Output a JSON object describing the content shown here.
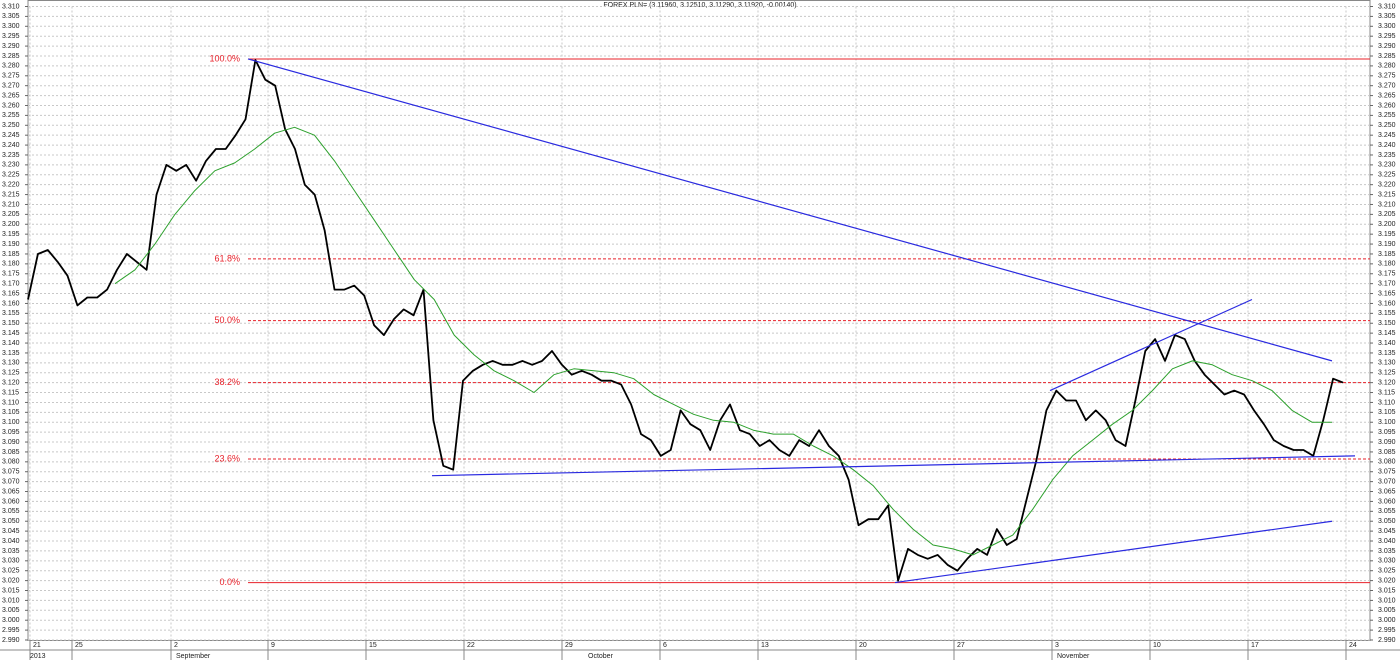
{
  "chart_data": {
    "type": "line",
    "title": "FOREX PLN= (3.11960, 3.12510, 3.11290, 3.11920, -0.00140)",
    "ylim": [
      2.99,
      3.31
    ],
    "yticks": [
      {
        "value": 3.31,
        "label": "3.310"
      },
      3.305,
      {
        "value": 3.3,
        "label": "3.300"
      },
      3.295,
      {
        "value": 3.29,
        "label": "3.290"
      },
      3.285,
      {
        "value": 3.28,
        "label": "3.280"
      },
      3.275,
      {
        "value": 3.27,
        "label": "3.270"
      },
      3.265,
      {
        "value": 3.26,
        "label": "3.260"
      },
      3.255,
      {
        "value": 3.25,
        "label": "3.250"
      },
      3.245,
      {
        "value": 3.24,
        "label": "3.240"
      },
      3.235,
      {
        "value": 3.23,
        "label": "3.230"
      },
      3.225,
      {
        "value": 3.22,
        "label": "3.220"
      },
      3.215,
      {
        "value": 3.21,
        "label": "3.210"
      },
      3.205,
      {
        "value": 3.2,
        "label": "3.200"
      },
      3.195,
      {
        "value": 3.19,
        "label": "3.190"
      },
      3.185,
      {
        "value": 3.18,
        "label": "3.180"
      },
      3.175,
      {
        "value": 3.17,
        "label": "3.170"
      },
      3.165,
      {
        "value": 3.16,
        "label": "3.160"
      },
      3.155,
      {
        "value": 3.15,
        "label": "3.150"
      },
      3.145,
      {
        "value": 3.14,
        "label": "3.140"
      },
      3.135,
      {
        "value": 3.13,
        "label": "3.130"
      },
      3.125,
      {
        "value": 3.12,
        "label": "3.120"
      },
      3.115,
      {
        "value": 3.11,
        "label": "3.110"
      },
      3.105,
      {
        "value": 3.1,
        "label": "3.100"
      },
      3.095,
      {
        "value": 3.09,
        "label": "3.090"
      },
      3.085,
      {
        "value": 3.08,
        "label": "3.080"
      },
      3.075,
      {
        "value": 3.07,
        "label": "3.070"
      },
      3.065,
      {
        "value": 3.06,
        "label": "3.060"
      },
      3.055,
      {
        "value": 3.05,
        "label": "3.050"
      },
      3.045,
      {
        "value": 3.04,
        "label": "3.040"
      },
      3.035,
      {
        "value": 3.03,
        "label": "3.030"
      },
      3.025,
      {
        "value": 3.02,
        "label": "3.020"
      },
      3.015,
      {
        "value": 3.01,
        "label": "3.010"
      },
      3.005,
      {
        "value": 3,
        "label": "3.000"
      },
      2.995,
      {
        "value": 2.99,
        "label": "2.990"
      }
    ],
    "grid": true,
    "x_labels": [
      "21",
      "25",
      "2",
      "9",
      "15",
      "22",
      "29",
      "6",
      "13",
      "20",
      "27",
      "3",
      "10",
      "17",
      "24"
    ],
    "month_labels": [
      "2013",
      "September",
      "October",
      "November"
    ],
    "series": [
      {
        "color": "#000000",
        "values": [
          3.162,
          3.185,
          3.187,
          3.181,
          3.174,
          3.159,
          3.163,
          3.163,
          3.167,
          3.177,
          3.185,
          3.181,
          3.177,
          3.215,
          3.23,
          3.227,
          3.23,
          3.222,
          3.232,
          3.238,
          3.238,
          3.245,
          3.253,
          3.283,
          3.273,
          3.27,
          3.248,
          3.238,
          3.22,
          3.215,
          3.197,
          3.167,
          3.167,
          3.169,
          3.164,
          3.149,
          3.144,
          3.152,
          3.157,
          3.154,
          3.167,
          3.101,
          3.078,
          3.076,
          3.121,
          3.126,
          3.129,
          3.131,
          3.129,
          3.129,
          3.131,
          3.129,
          3.131,
          3.136,
          3.129,
          3.124,
          3.126,
          3.124,
          3.121,
          3.121,
          3.119,
          3.109,
          3.094,
          3.091,
          3.083,
          3.086,
          3.106,
          3.099,
          3.096,
          3.086,
          3.101,
          3.109,
          3.096,
          3.094,
          3.088,
          3.091,
          3.086,
          3.083,
          3.091,
          3.088,
          3.096,
          3.088,
          3.083,
          3.071,
          3.048,
          3.051,
          3.051,
          3.058,
          3.02,
          3.036,
          3.033,
          3.031,
          3.033,
          3.028,
          3.025,
          3.031,
          3.036,
          3.033,
          3.046,
          3.038,
          3.041,
          3.061,
          3.081,
          3.106,
          3.116,
          3.111,
          3.111,
          3.101,
          3.106,
          3.101,
          3.091,
          3.088,
          3.111,
          3.136,
          3.142,
          3.131,
          3.144,
          3.142,
          3.131,
          3.124,
          3.119,
          3.114,
          3.116,
          3.114,
          3.106,
          3.099,
          3.091,
          3.088,
          3.086,
          3.086,
          3.083,
          3.101,
          3.122,
          3.12
        ]
      },
      {
        "color": "#2ca02c",
        "values": [
          3.17,
          3.177,
          3.19,
          3.205,
          3.217,
          3.227,
          3.231,
          3.238,
          3.246,
          3.249,
          3.245,
          3.232,
          3.217,
          3.202,
          3.187,
          3.172,
          3.162,
          3.144,
          3.134,
          3.126,
          3.121,
          3.115,
          3.124,
          3.127,
          3.126,
          3.125,
          3.122,
          3.114,
          3.109,
          3.104,
          3.101,
          3.1,
          3.096,
          3.094,
          3.094,
          3.088,
          3.083,
          3.076,
          3.068,
          3.056,
          3.046,
          3.038,
          3.036,
          3.033,
          3.038,
          3.043,
          3.056,
          3.071,
          3.083,
          3.091,
          3.099,
          3.106,
          3.116,
          3.127,
          3.131,
          3.129,
          3.124,
          3.121,
          3.116,
          3.106,
          3.1,
          3.1
        ]
      }
    ],
    "fib_levels": [
      {
        "label": "100.0%",
        "value": 3.2835,
        "dashed": false
      },
      {
        "label": "61.8%",
        "value": 3.1825,
        "dashed": true
      },
      {
        "label": "50.0%",
        "value": 3.1513,
        "dashed": true
      },
      {
        "label": "38.2%",
        "value": 3.12,
        "dashed": true
      },
      {
        "label": "23.6%",
        "value": 3.0814,
        "dashed": true
      },
      {
        "label": "0.0%",
        "value": 3.019,
        "dashed": false
      }
    ],
    "fib_color": "#e8202a",
    "trendline_color": "#2a2ae0",
    "trendlines": [
      {
        "values": [
          3.2835,
          3.131
        ]
      },
      {
        "values": [
          3.116,
          3.162
        ]
      },
      {
        "values": [
          3.073,
          3.083
        ]
      },
      {
        "values": [
          3.019,
          3.05
        ]
      }
    ]
  }
}
